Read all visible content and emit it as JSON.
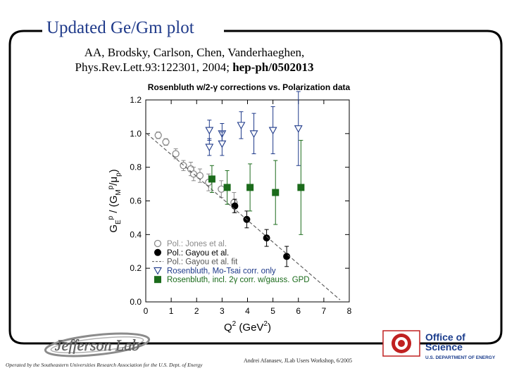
{
  "slide": {
    "title": "Updated Ge/Gm plot",
    "citation_line1": "AA, Brodsky, Carlson, Chen, Vanderhaeghen,",
    "citation_line2_plain": "Phys.Rev.Lett.93:122301, 2004; ",
    "citation_line2_bold": "hep-ph/0502013",
    "footer_left": "Operated by the Southeastern Universities Research Association for the U.S. Dept. of Energy",
    "footer_mid": "Andrei Afanasev, JLab Users Workshop, 6/2005",
    "logo_left_text": "Jefferson Lab",
    "logo_right_line1": "Office of",
    "logo_right_line2": "Science",
    "logo_right_line3": "U.S. DEPARTMENT OF ENERGY",
    "frame_color": "#000000",
    "title_color": "#1f3a8a"
  },
  "chart_data": {
    "type": "scatter",
    "title": "Rosenbluth w/2-γ corrections vs. Polarization data",
    "xlabel": "Q² (GeV²)",
    "ylabel": "G_E^p / (G_M^p/μ_p)",
    "xlim": [
      0,
      8
    ],
    "ylim": [
      0,
      1.2
    ],
    "xticks": [
      0,
      1,
      2,
      3,
      4,
      5,
      6,
      7,
      8
    ],
    "yticks": [
      0.0,
      0.2,
      0.4,
      0.6,
      0.8,
      1.0,
      1.2
    ],
    "ytick_labels": [
      "0.0",
      "0.2",
      "0.4",
      "0.6",
      "0.8",
      "1.0",
      "1.2"
    ],
    "legend_position": "bottom-left",
    "series": [
      {
        "name": "Pol.: Jones et al.",
        "marker": "open-circle",
        "color": "#8a8a8a",
        "points": [
          {
            "x": 0.49,
            "y": 0.99,
            "err": 0.02
          },
          {
            "x": 0.79,
            "y": 0.95,
            "err": 0.02
          },
          {
            "x": 1.18,
            "y": 0.88,
            "err": 0.03
          },
          {
            "x": 1.48,
            "y": 0.81,
            "err": 0.03
          },
          {
            "x": 1.77,
            "y": 0.79,
            "err": 0.04
          },
          {
            "x": 1.88,
            "y": 0.76,
            "err": 0.04
          },
          {
            "x": 2.13,
            "y": 0.75,
            "err": 0.04
          },
          {
            "x": 2.47,
            "y": 0.71,
            "err": 0.05
          },
          {
            "x": 2.97,
            "y": 0.67,
            "err": 0.05
          },
          {
            "x": 3.47,
            "y": 0.59,
            "err": 0.06
          }
        ]
      },
      {
        "name": "Pol.: Gayou et al.",
        "marker": "filled-circle",
        "color": "#000000",
        "points": [
          {
            "x": 3.5,
            "y": 0.57,
            "err": 0.04
          },
          {
            "x": 3.97,
            "y": 0.49,
            "err": 0.05
          },
          {
            "x": 4.75,
            "y": 0.38,
            "err": 0.05
          },
          {
            "x": 5.54,
            "y": 0.27,
            "err": 0.06
          }
        ]
      },
      {
        "name": "Pol.: Gayou et al. fit",
        "marker": "dashed-line",
        "color": "#555555",
        "fit": {
          "intercept": 1.0,
          "slope": -0.13,
          "q2_min": 0.04,
          "x_max": 7.7
        }
      },
      {
        "name": "Rosenbluth, Mo-Tsai corr. only",
        "marker": "open-triangle-down",
        "color": "#1f3a8a",
        "points": [
          {
            "x": 2.5,
            "y": 1.02,
            "err": 0.06
          },
          {
            "x": 2.5,
            "y": 0.92,
            "err": 0.05
          },
          {
            "x": 3.0,
            "y": 1.0,
            "err": 0.06
          },
          {
            "x": 3.0,
            "y": 0.94,
            "err": 0.07
          },
          {
            "x": 3.75,
            "y": 1.05,
            "err": 0.08
          },
          {
            "x": 4.25,
            "y": 1.0,
            "err": 0.12
          },
          {
            "x": 5.0,
            "y": 1.02,
            "err": 0.14
          },
          {
            "x": 6.0,
            "y": 1.03,
            "err": 0.22
          }
        ]
      },
      {
        "name": "Rosenbluth, incl. 2γ corr. w/gauss. GPD",
        "marker": "filled-square",
        "color": "#1b6b1b",
        "points": [
          {
            "x": 2.6,
            "y": 0.73,
            "err": 0.08
          },
          {
            "x": 3.2,
            "y": 0.68,
            "err": 0.1
          },
          {
            "x": 4.1,
            "y": 0.68,
            "err": 0.14
          },
          {
            "x": 5.1,
            "y": 0.65,
            "err": 0.19
          },
          {
            "x": 6.1,
            "y": 0.68,
            "err": 0.28
          }
        ]
      }
    ]
  }
}
